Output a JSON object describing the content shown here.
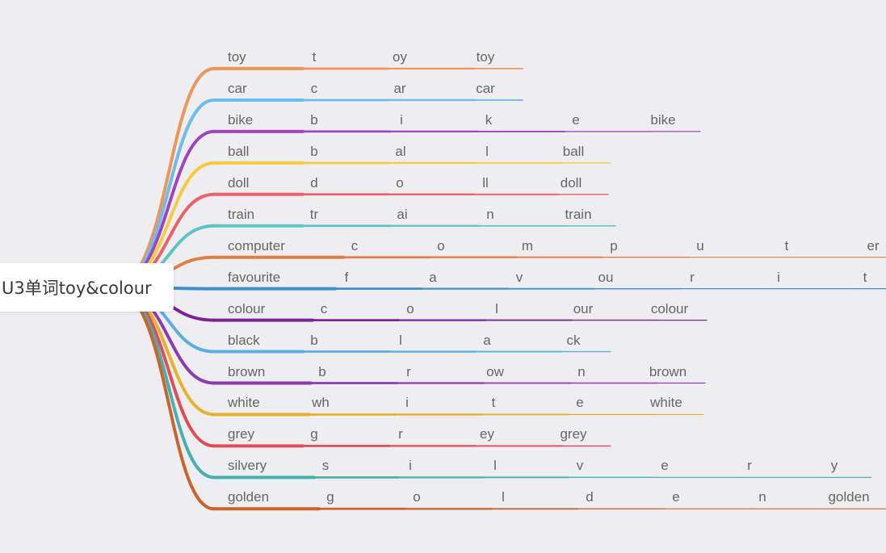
{
  "root": {
    "label": "U3单词toy&colour"
  },
  "branches": [
    {
      "color": "#f0955a",
      "nodes": [
        "toy",
        "t",
        "oy",
        "toy"
      ]
    },
    {
      "color": "#6cbcee",
      "nodes": [
        "car",
        "c",
        "ar",
        "car"
      ]
    },
    {
      "color": "#a044c0",
      "nodes": [
        "bike",
        "b",
        "i",
        "k",
        "e",
        "bike"
      ]
    },
    {
      "color": "#f5cb3f",
      "nodes": [
        "ball",
        "b",
        "al",
        "l",
        "ball"
      ]
    },
    {
      "color": "#f0606a",
      "nodes": [
        "doll",
        "d",
        "o",
        "ll",
        "doll"
      ]
    },
    {
      "color": "#5ec3c6",
      "nodes": [
        "train",
        "tr",
        "ai",
        "n",
        "train"
      ]
    },
    {
      "color": "#e27d45",
      "nodes": [
        "computer",
        "c",
        "o",
        "m",
        "p",
        "u",
        "t",
        "er"
      ]
    },
    {
      "color": "#3f8fca",
      "nodes": [
        "favourite",
        "f",
        "a",
        "v",
        "ou",
        "r",
        "i",
        "t"
      ]
    },
    {
      "color": "#7b2494",
      "nodes": [
        "colour",
        "c",
        "o",
        "l",
        "our",
        "colour"
      ]
    },
    {
      "color": "#5aaee0",
      "nodes": [
        "black",
        "b",
        "l",
        "a",
        "ck"
      ]
    },
    {
      "color": "#8e3bb0",
      "nodes": [
        "brown",
        "b",
        "r",
        "ow",
        "n",
        "brown"
      ]
    },
    {
      "color": "#e6b22e",
      "nodes": [
        "white",
        "wh",
        "i",
        "t",
        "e",
        "white"
      ]
    },
    {
      "color": "#e34b55",
      "nodes": [
        "grey",
        "g",
        "r",
        "ey",
        "grey"
      ]
    },
    {
      "color": "#47b0b3",
      "nodes": [
        "silvery",
        "s",
        "i",
        "l",
        "v",
        "e",
        "r",
        "y"
      ]
    },
    {
      "color": "#c9652c",
      "nodes": [
        "golden",
        "g",
        "o",
        "l",
        "d",
        "e",
        "n",
        "golden"
      ]
    }
  ]
}
